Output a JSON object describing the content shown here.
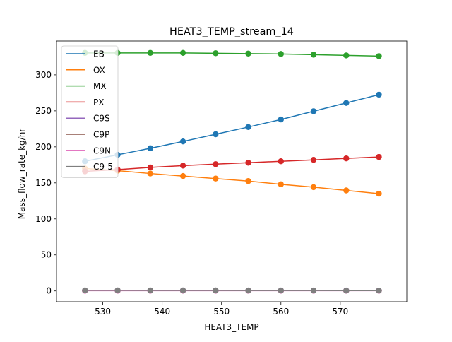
{
  "chart_data": {
    "type": "line",
    "title": "HEAT3_TEMP_stream_14",
    "xlabel": "HEAT3_TEMP",
    "ylabel": "Mass_flow_rate_kg/hr",
    "xlim": [
      522.2,
      581.2
    ],
    "ylim": [
      -15,
      347
    ],
    "xticks": [
      530,
      540,
      550,
      560,
      570
    ],
    "yticks": [
      0,
      50,
      100,
      150,
      200,
      250,
      300
    ],
    "grid": false,
    "legend_position": "upper-left",
    "markers": true,
    "x": [
      527,
      532.5,
      538,
      543.5,
      549,
      554.5,
      560,
      565.5,
      571,
      576.5
    ],
    "series": [
      {
        "name": "EB",
        "color": "#1f77b4",
        "values": [
          180,
          189,
          198,
          207.5,
          217.5,
          227.5,
          238,
          249.5,
          261,
          272.5
        ]
      },
      {
        "name": "OX",
        "color": "#ff7f0e",
        "values": [
          170,
          167,
          163,
          159.5,
          156,
          152.5,
          148,
          144,
          139.5,
          135
        ]
      },
      {
        "name": "MX",
        "color": "#2ca02c",
        "values": [
          330.5,
          330.5,
          330.5,
          330.5,
          330,
          329.5,
          329,
          328,
          327,
          326
        ]
      },
      {
        "name": "PX",
        "color": "#d62728",
        "values": [
          166,
          168.5,
          171.5,
          174,
          176,
          178,
          180,
          182,
          184,
          186
        ]
      },
      {
        "name": "C9S",
        "color": "#9467bd",
        "values": [
          0.6,
          0.6,
          0.6,
          0.6,
          0.6,
          0.6,
          0.6,
          0.6,
          0.6,
          0.6
        ]
      },
      {
        "name": "C9P",
        "color": "#8c564b",
        "values": [
          0.4,
          0.4,
          0.4,
          0.4,
          0.4,
          0.4,
          0.4,
          0.4,
          0.4,
          0.4
        ]
      },
      {
        "name": "C9N",
        "color": "#e377c2",
        "values": [
          0.3,
          0.3,
          0.3,
          0.3,
          0.3,
          0.3,
          0.3,
          0.3,
          0.3,
          0.3
        ]
      },
      {
        "name": "C9-5",
        "color": "#7f7f7f",
        "values": [
          0.8,
          0.8,
          0.7,
          0.7,
          0.7,
          0.6,
          0.6,
          0.6,
          0.5,
          0.5
        ]
      }
    ]
  }
}
